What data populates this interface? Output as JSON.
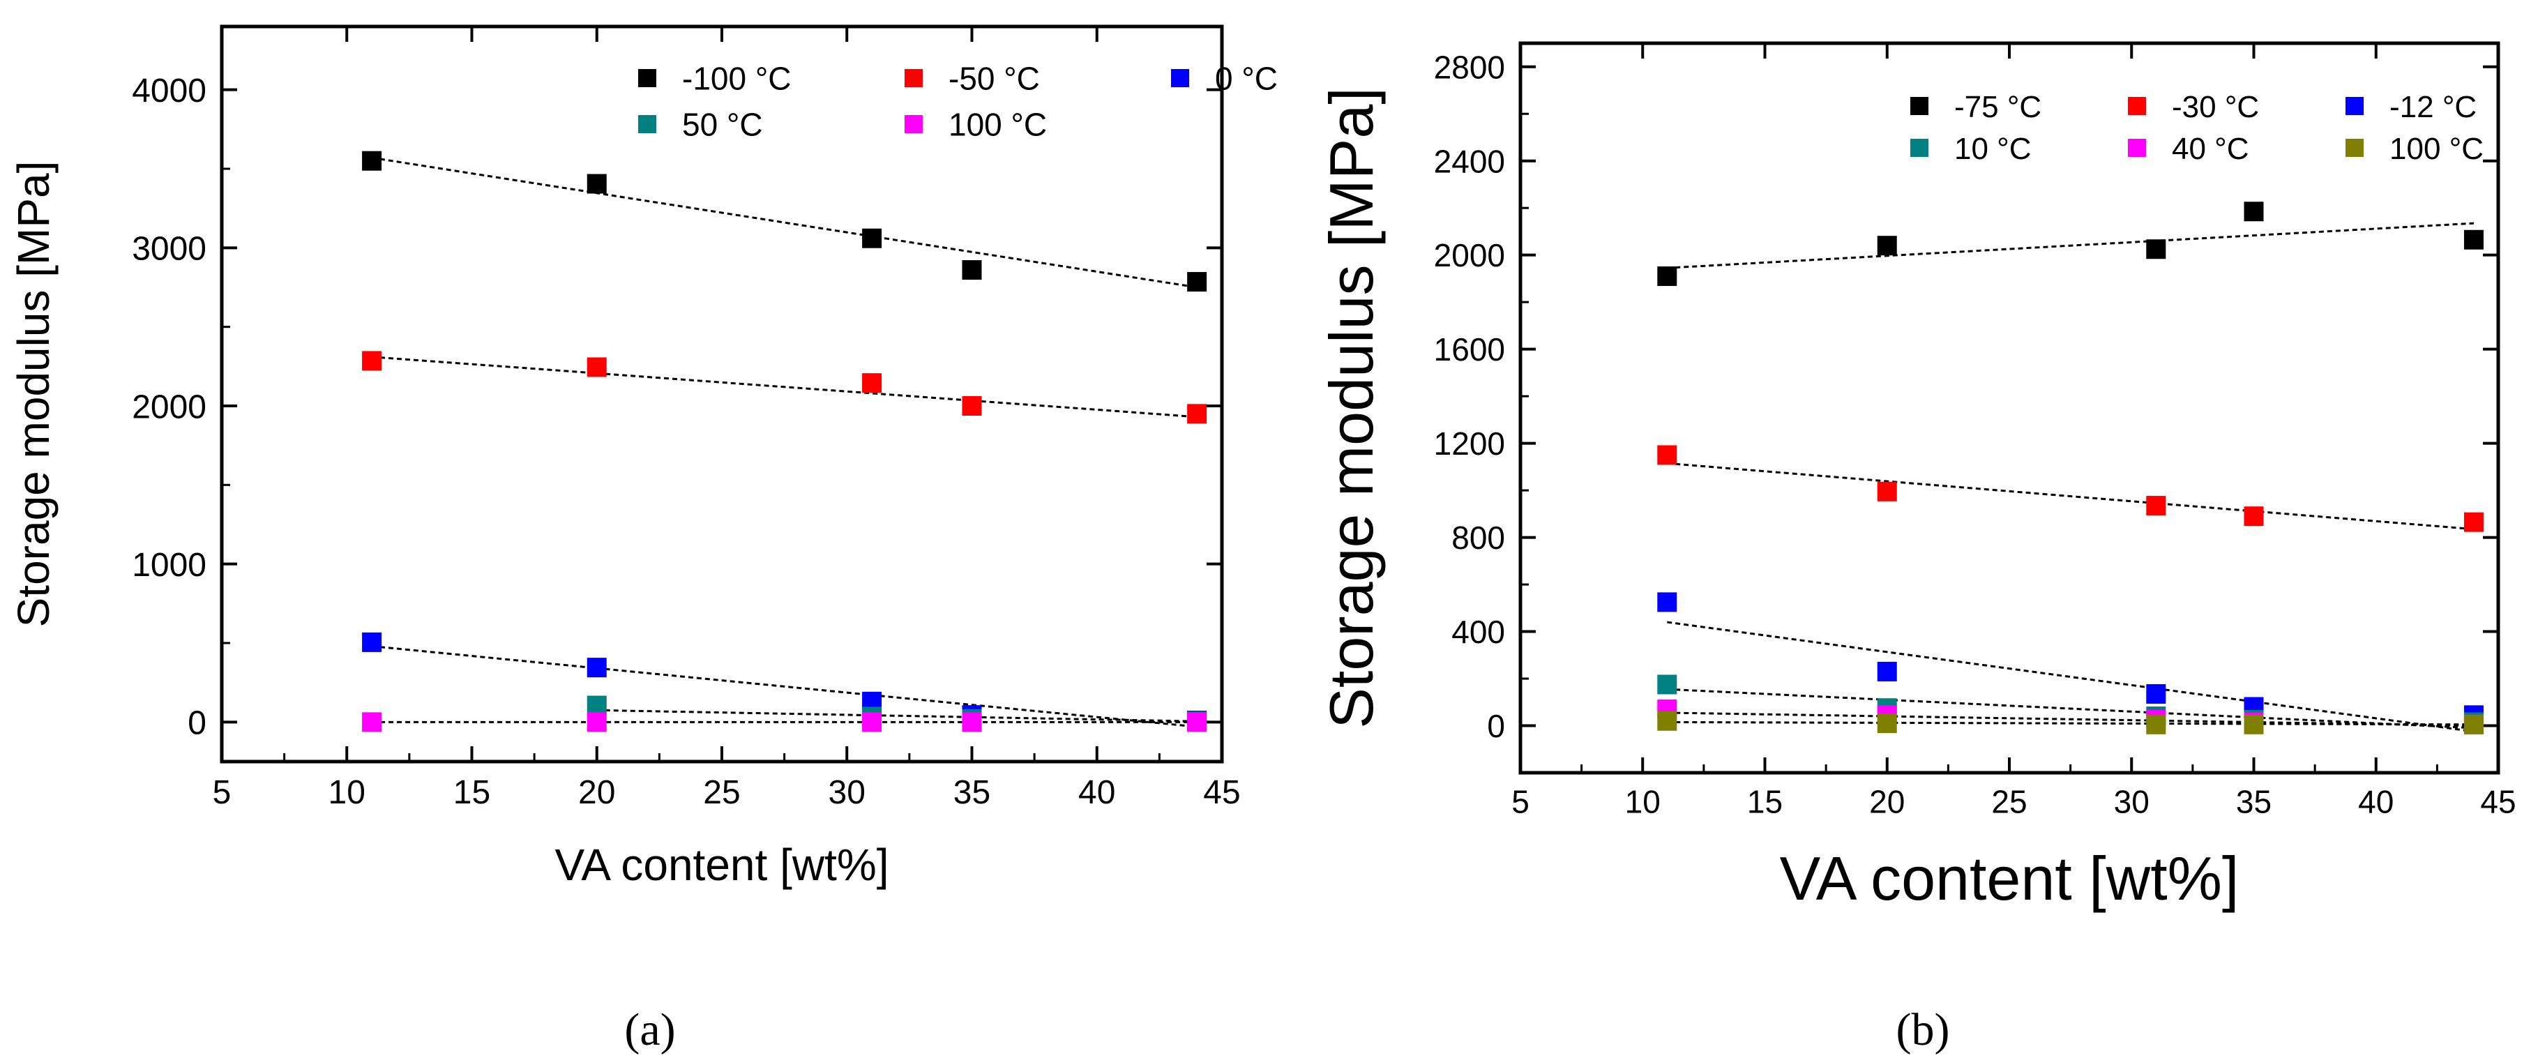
{
  "figure": {
    "panels": [
      "(a)",
      "(b)"
    ]
  },
  "chart_data": [
    {
      "type": "scatter",
      "panel": "(a)",
      "title": "",
      "xlabel": "VA content [wt%]",
      "ylabel": "Storage modulus [MPa]",
      "xlim": [
        5,
        45
      ],
      "ylim": [
        -250,
        4400
      ],
      "xticks": [
        5,
        10,
        15,
        20,
        25,
        30,
        35,
        40,
        45
      ],
      "yticks": [
        0,
        1000,
        2000,
        3000,
        4000
      ],
      "x": [
        11,
        20,
        31,
        35,
        44
      ],
      "legend_position": "top-right",
      "legend_columns": 3,
      "trendlines": true,
      "series": [
        {
          "name": "-100 °C",
          "color": "#000000",
          "values": [
            3550,
            3405,
            3060,
            2860,
            2785
          ],
          "fit": [
            3570,
            2750
          ]
        },
        {
          "name": "-50 °C",
          "color": "#ff0000",
          "values": [
            2285,
            2245,
            2145,
            2000,
            1950
          ],
          "fit": [
            2310,
            1930
          ]
        },
        {
          "name": "0 °C",
          "color": "#0000ff",
          "values": [
            505,
            345,
            130,
            45,
            10
          ],
          "fit": [
            480,
            -30
          ]
        },
        {
          "name": "50 °C",
          "color": "#008080",
          "values": [
            null,
            105,
            35,
            20,
            5
          ],
          "fit": [
            75,
            5
          ],
          "fit_x": [
            20,
            44
          ]
        },
        {
          "name": "100 °C",
          "color": "#ff00ff",
          "values": [
            0,
            0,
            0,
            0,
            0
          ],
          "fit": [
            0,
            0
          ]
        }
      ]
    },
    {
      "type": "scatter",
      "panel": "(b)",
      "title": "",
      "xlabel": "VA content [wt%]",
      "ylabel": "Storage modulus [MPa]",
      "xlim": [
        5,
        45
      ],
      "ylim": [
        -200,
        2900
      ],
      "xticks": [
        5,
        10,
        15,
        20,
        25,
        30,
        35,
        40,
        45
      ],
      "yticks": [
        0,
        400,
        800,
        1200,
        1600,
        2000,
        2400,
        2800
      ],
      "x": [
        11,
        20,
        31,
        35,
        44
      ],
      "legend_position": "top-right",
      "legend_columns": 3,
      "trendlines": true,
      "series": [
        {
          "name": "-75 °C",
          "color": "#000000",
          "values": [
            1910,
            2040,
            2025,
            2185,
            2065
          ],
          "fit": [
            1945,
            2135
          ]
        },
        {
          "name": "-30 °C",
          "color": "#ff0000",
          "values": [
            1150,
            995,
            935,
            890,
            865
          ],
          "fit": [
            1115,
            835
          ]
        },
        {
          "name": "-12 °C",
          "color": "#0000ff",
          "values": [
            525,
            230,
            135,
            80,
            45
          ],
          "fit": [
            440,
            -25
          ]
        },
        {
          "name": "10 °C",
          "color": "#008080",
          "values": [
            175,
            75,
            40,
            25,
            15
          ],
          "fit": [
            155,
            -10
          ]
        },
        {
          "name": "40 °C",
          "color": "#ff00ff",
          "values": [
            70,
            45,
            25,
            15,
            5
          ],
          "fit": [
            55,
            0
          ]
        },
        {
          "name": "100 °C",
          "color": "#808000",
          "values": [
            20,
            10,
            5,
            5,
            5
          ],
          "fit": [
            15,
            5
          ]
        }
      ]
    }
  ]
}
